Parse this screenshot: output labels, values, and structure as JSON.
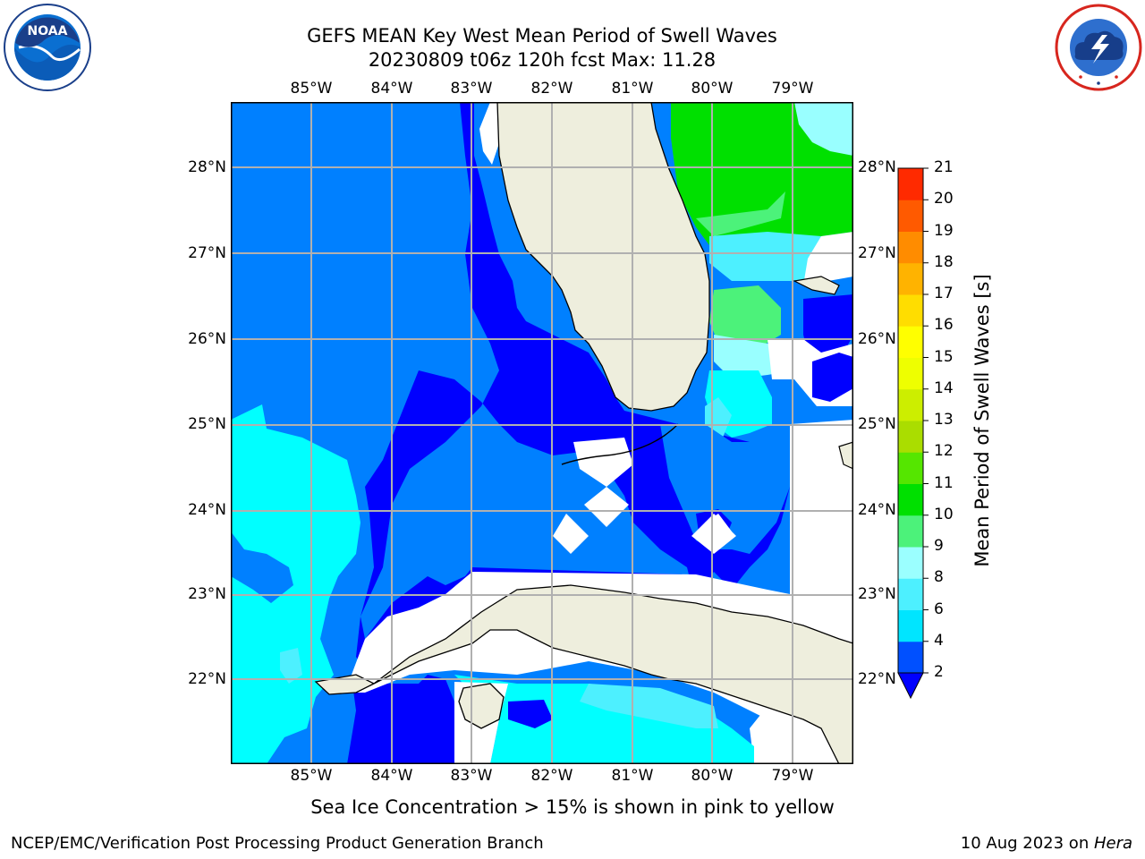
{
  "title": {
    "line1": "GEFS MEAN Key West Mean Period of Swell Waves",
    "line2": "20230809 t06z 120h fcst   Max: 11.28"
  },
  "logos": {
    "left": {
      "name": "noaa-logo",
      "text": "NOAA",
      "ring_text": "NATIONAL OCEANIC AND ATMOSPHERIC ADMINISTRATION · U.S. DEPARTMENT OF COMMERCE"
    },
    "right": {
      "name": "nws-logo",
      "ring_text": "NATIONAL WEATHER SERVICE"
    }
  },
  "map": {
    "lon_ticks": [
      "85°W",
      "84°W",
      "83°W",
      "82°W",
      "81°W",
      "80°W",
      "79°W"
    ],
    "lat_ticks": [
      "28°N",
      "27°N",
      "26°N",
      "25°N",
      "24°N",
      "23°N",
      "22°N"
    ],
    "lon_range": [
      -86.0,
      -78.3
    ],
    "lat_range": [
      21.0,
      28.75
    ],
    "gridlines": true
  },
  "colorbar": {
    "label": "Mean Period of Swell Waves [s]",
    "ticks": [
      "21",
      "20",
      "19",
      "18",
      "17",
      "16",
      "15",
      "14",
      "13",
      "12",
      "11",
      "10",
      "9",
      "8",
      "6",
      "4",
      "2"
    ],
    "levels": [
      2,
      4,
      6,
      8,
      9,
      10,
      11,
      12,
      13,
      14,
      15,
      16,
      17,
      18,
      19,
      20,
      21
    ],
    "colors": [
      "#0050ff",
      "#00e5ff",
      "#4df0ff",
      "#9bffff",
      "#4cf27a",
      "#00e000",
      "#55e600",
      "#aadd00",
      "#ccee00",
      "#eeff00",
      "#ffff00",
      "#ffdd00",
      "#ffb300",
      "#ff8c00",
      "#ff5a00",
      "#ff2a00"
    ],
    "extend_color": "#0000ff"
  },
  "colors": {
    "land": "#eeeedd",
    "deep_blue": "#0000ff",
    "blue": "#0080ff",
    "cyan": "#00ffff",
    "light_cyan": "#99ffff",
    "green": "#00e000",
    "light_green": "#4cf27a",
    "grid": "#b0b0b0"
  },
  "note": "Sea Ice Concentration > 15% is shown in pink to yellow",
  "footer": {
    "left": "NCEP/EMC/Verification Post Processing Product Generation Branch",
    "date": "10 Aug 2023 on ",
    "machine": "Hera"
  }
}
